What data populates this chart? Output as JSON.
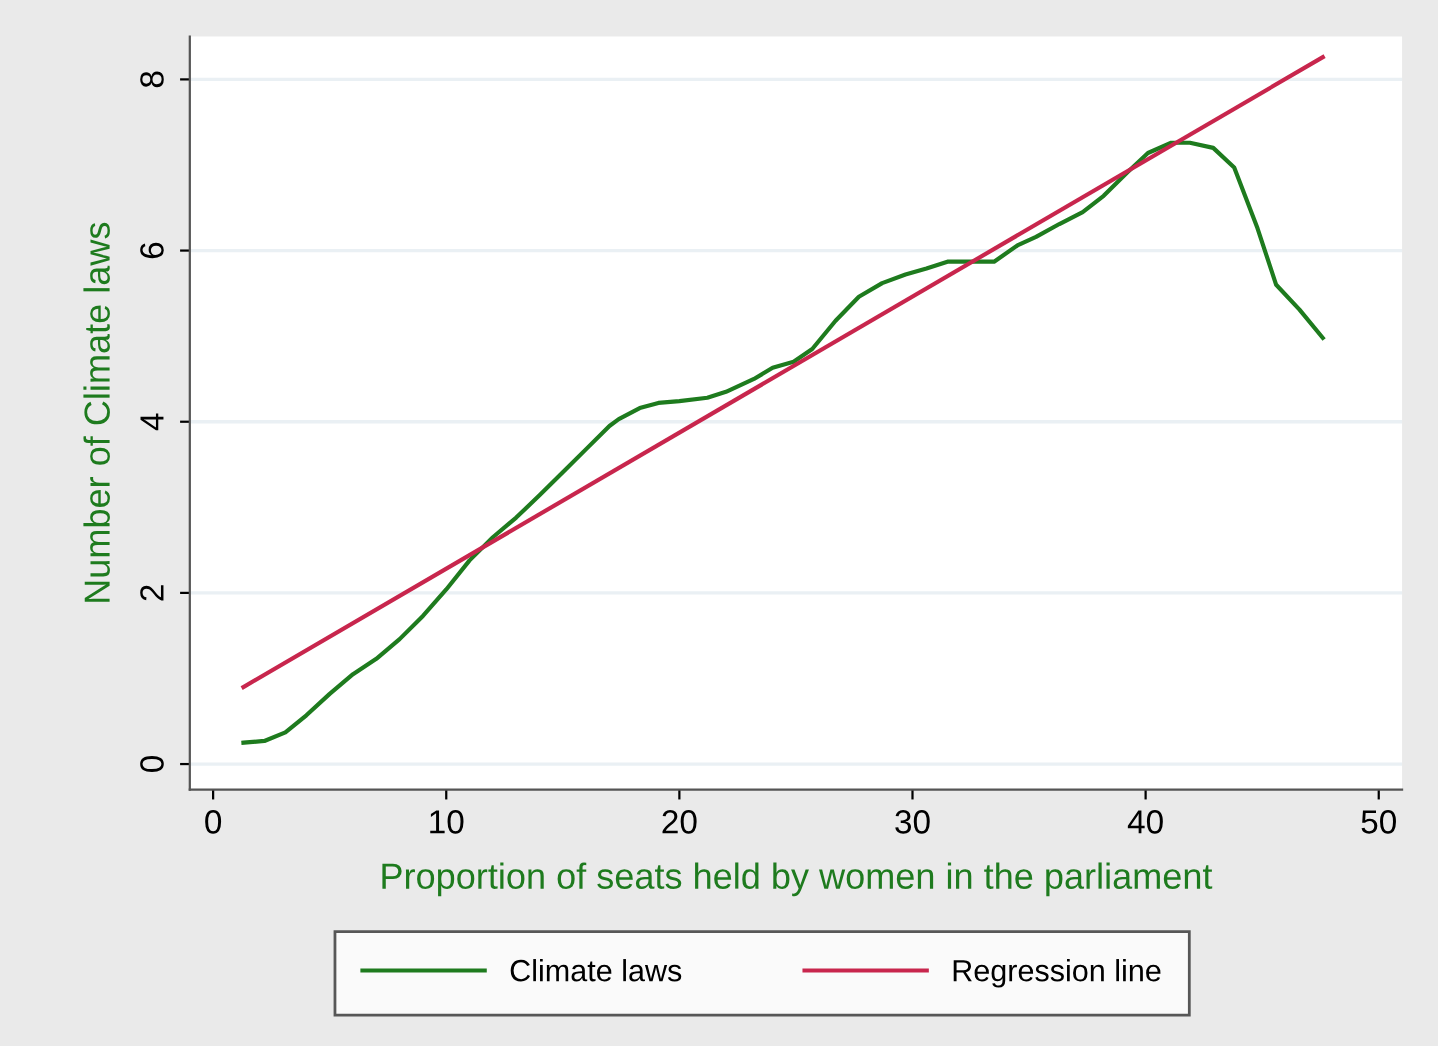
{
  "chart_data": {
    "type": "line",
    "xlabel": "Proportion of seats held by women in the parliament",
    "ylabel": "Number of Climate laws",
    "xlim": [
      -1,
      51
    ],
    "ylim": [
      -0.3,
      8.5
    ],
    "xticks": [
      0,
      10,
      20,
      30,
      40,
      50
    ],
    "yticks": [
      0,
      2,
      4,
      6,
      8
    ],
    "grid": "y",
    "legend": "bottom",
    "line_style": "solid",
    "marker": "none",
    "series": [
      {
        "name": "Climate laws",
        "color": "#1e7b1e",
        "x": [
          1.3,
          2.2,
          3.1,
          4.0,
          5.0,
          6.0,
          7.0,
          8.0,
          9.0,
          10.0,
          11.0,
          12.0,
          13.0,
          14.0,
          15.0,
          16.0,
          17.0,
          17.4,
          18.3,
          19.1,
          20.0,
          21.2,
          22.0,
          23.2,
          24.0,
          24.9,
          25.7,
          26.7,
          27.7,
          28.7,
          29.7,
          30.6,
          31.5,
          32.5,
          33.5,
          34.5,
          35.3,
          36.3,
          37.3,
          38.2,
          39.2,
          40.1,
          41.1,
          41.9,
          42.9,
          43.8,
          44.8,
          45.6,
          46.6,
          47.6
        ],
        "values": [
          0.25,
          0.27,
          0.37,
          0.57,
          0.82,
          1.05,
          1.23,
          1.46,
          1.73,
          2.04,
          2.38,
          2.65,
          2.88,
          3.14,
          3.41,
          3.68,
          3.95,
          4.03,
          4.16,
          4.22,
          4.24,
          4.28,
          4.35,
          4.5,
          4.63,
          4.7,
          4.85,
          5.18,
          5.46,
          5.62,
          5.72,
          5.79,
          5.87,
          5.87,
          5.87,
          6.06,
          6.16,
          6.31,
          6.45,
          6.64,
          6.91,
          7.14,
          7.26,
          7.26,
          7.2,
          6.97,
          6.26,
          5.6,
          5.31,
          4.98
        ]
      },
      {
        "name": "Regression line",
        "color": "#c8264d",
        "x": [
          1.3,
          47.6
        ],
        "values": [
          0.9,
          8.26
        ]
      }
    ]
  }
}
